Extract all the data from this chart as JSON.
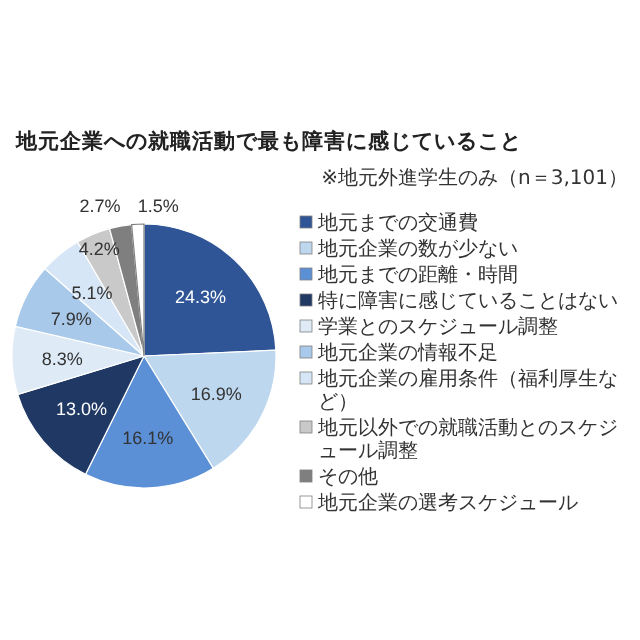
{
  "chart_data": {
    "type": "pie",
    "title": "地元企業への就職活動で最も障害に感じていること",
    "subtitle": "※地元外進学生のみ（n＝3,101）",
    "categories": [
      "地元までの交通費",
      "地元企業の数が少ない",
      "地元までの距離・時間",
      "特に障害に感じていることはない",
      "学業とのスケジュール調整",
      "地元企業の情報不足",
      "地元企業の雇用条件（福利厚生など）",
      "地元以外での就職活動とのスケジュール調整",
      "その他",
      "地元企業の選考スケジュール"
    ],
    "values": [
      24.3,
      16.9,
      16.1,
      13.0,
      8.3,
      7.9,
      5.1,
      4.2,
      2.7,
      1.5
    ],
    "value_labels": [
      "24.3%",
      "16.9%",
      "16.1%",
      "13.0%",
      "8.3%",
      "7.9%",
      "5.1%",
      "4.2%",
      "2.7%",
      "1.5%"
    ],
    "colors": [
      "#2f5597",
      "#bdd7ee",
      "#5b8fd6",
      "#203864",
      "#deebf7",
      "#a9c9ea",
      "#d6e6f7",
      "#c9c9c9",
      "#7f7f7f",
      "#ffffff"
    ],
    "legend": "right"
  }
}
